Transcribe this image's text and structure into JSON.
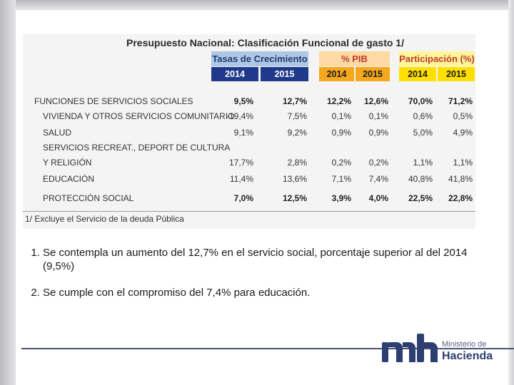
{
  "table": {
    "title": "Presupuesto Nacional: Clasificación Funcional de gasto 1/",
    "groups": [
      "Tasas de Crecimiento",
      "% PIB",
      "Participación (%)"
    ],
    "years": [
      "2014",
      "2015",
      "2014",
      "2015",
      "2014",
      "2015"
    ],
    "rows": [
      {
        "label": "FUNCIONES DE SERVICIOS SOCIALES",
        "values": [
          "9,5%",
          "12,7%",
          "12,2%",
          "12,6%",
          "70,0%",
          "71,2%"
        ]
      },
      {
        "label": "VIVIENDA Y OTROS SERVICIOS COMUNITARIO",
        "values": [
          "-19,4%",
          "7,5%",
          "0,1%",
          "0,1%",
          "0,6%",
          "0,5%"
        ]
      },
      {
        "label": "SALUD",
        "values": [
          "9,1%",
          "9,2%",
          "0,9%",
          "0,9%",
          "5,0%",
          "4,9%"
        ]
      },
      {
        "label": "SERVICIOS RECREAT., DEPORT DE CULTURA",
        "label2": "Y RELIGIÓN",
        "values": [
          "17,7%",
          "2,8%",
          "0,2%",
          "0,2%",
          "1,1%",
          "1,1%"
        ]
      },
      {
        "label": "EDUCACIÓN",
        "values": [
          "11,4%",
          "13,6%",
          "7,1%",
          "7,4%",
          "40,8%",
          "41,8%"
        ]
      },
      {
        "label": "PROTECCIÓN SOCIAL",
        "values": [
          "7,0%",
          "12,5%",
          "3,9%",
          "4,0%",
          "22,5%",
          "22,8%"
        ]
      }
    ],
    "footnote": "1/ Excluye el Servicio de la deuda Pública"
  },
  "notes": [
    "Se contempla un aumento del 12,7% en el servicio social, porcentaje superior al del 2014 (9,5%)",
    "Se cumple con el compromiso del 7,4% para educación."
  ],
  "logo": {
    "line1": "Ministerio de",
    "line2": "Hacienda"
  },
  "colors": {
    "blue_header": "#1f3a8a",
    "orange_header": "#f5a81c",
    "yellow_header": "#ffe000",
    "logo_navy": "#2d3e70"
  }
}
